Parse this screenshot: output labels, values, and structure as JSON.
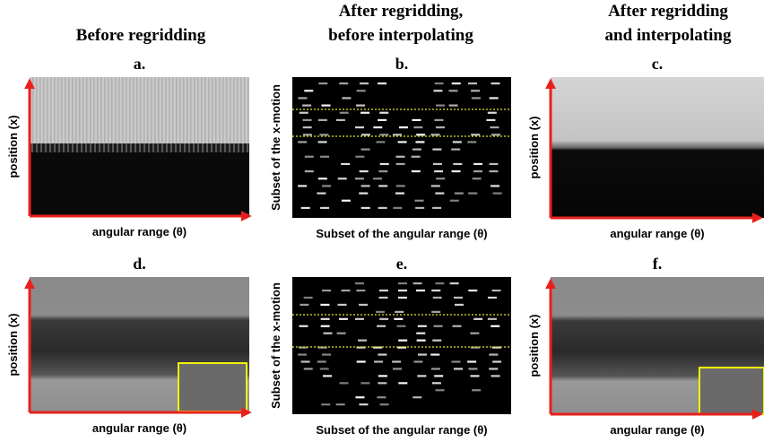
{
  "columns": [
    {
      "title": [
        "Before regridding"
      ]
    },
    {
      "title": [
        "After regridding,",
        "before interpolating"
      ]
    },
    {
      "title": [
        "After regridding",
        "and interpolating"
      ]
    }
  ],
  "panels": [
    {
      "label": "a.",
      "x_label": "angular range (θ)",
      "y_label": "position (x)"
    },
    {
      "label": "b.",
      "x_label": "Subset of the angular range (θ)",
      "y_label": "Subset of the x-motion"
    },
    {
      "label": "c.",
      "x_label": "angular range (θ)",
      "y_label": "position (x)"
    },
    {
      "label": "d.",
      "x_label": "angular range (θ)",
      "y_label": "position (x)"
    },
    {
      "label": "e.",
      "x_label": "Subset of the angular range (θ)",
      "y_label": "Subset of the x-motion"
    },
    {
      "label": "f.",
      "x_label": "angular range (θ)",
      "y_label": "position (x)"
    }
  ]
}
